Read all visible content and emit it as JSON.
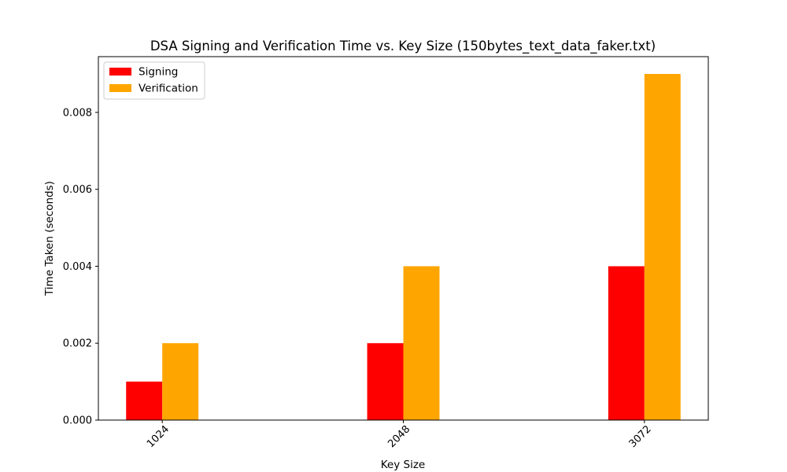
{
  "chart_data": {
    "type": "bar",
    "title": "DSA Signing and Verification Time vs. Key Size (150bytes_text_data_faker.txt)",
    "xlabel": "Key Size",
    "ylabel": "Time Taken (seconds)",
    "categories": [
      "1024",
      "2048",
      "3072"
    ],
    "series": [
      {
        "name": "Signing",
        "color": "#ff0000",
        "values": [
          0.001,
          0.002,
          0.004
        ]
      },
      {
        "name": "Verification",
        "color": "#ffa500",
        "values": [
          0.002,
          0.004,
          0.009
        ]
      }
    ],
    "ylim": [
      0,
      0.00945
    ],
    "yticks": [
      0.0,
      0.002,
      0.004,
      0.006,
      0.008
    ],
    "ytick_labels": [
      "0.000",
      "0.002",
      "0.004",
      "0.006",
      "0.008"
    ],
    "xtick_rotation": 45,
    "grid": false,
    "legend_position": "upper-left"
  }
}
